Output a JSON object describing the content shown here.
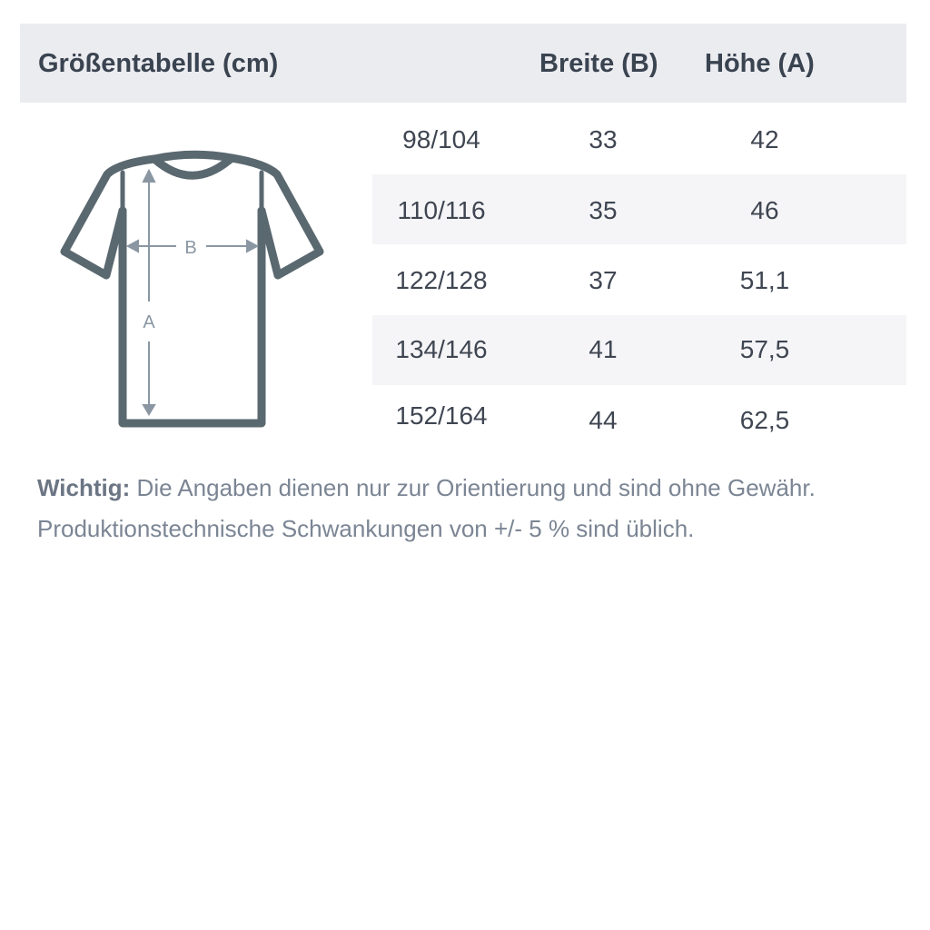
{
  "header": {
    "title": "Größentabelle (cm)",
    "col_width": "Breite (B)",
    "col_height": "Höhe (A)"
  },
  "diagram": {
    "label_width": "B",
    "label_height": "A",
    "icon": "t-shirt-icon",
    "stroke_color": "#5a6870",
    "arrow_color": "#8a97a3"
  },
  "rows": [
    {
      "size": "98/104",
      "width": "33",
      "height": "42"
    },
    {
      "size": "110/116",
      "width": "35",
      "height": "46"
    },
    {
      "size": "122/128",
      "width": "37",
      "height": "51,1"
    },
    {
      "size": "134/146",
      "width": "41",
      "height": "57,5"
    },
    {
      "size": "152/164",
      "width": "44",
      "height": "62,5"
    }
  ],
  "note": {
    "label": "Wichtig:",
    "line1": " Die Angaben dienen nur zur Orientierung und sind ohne Gewähr.",
    "line2": "Produktionstechnische Schwankungen von +/- 5 % sind üblich."
  }
}
